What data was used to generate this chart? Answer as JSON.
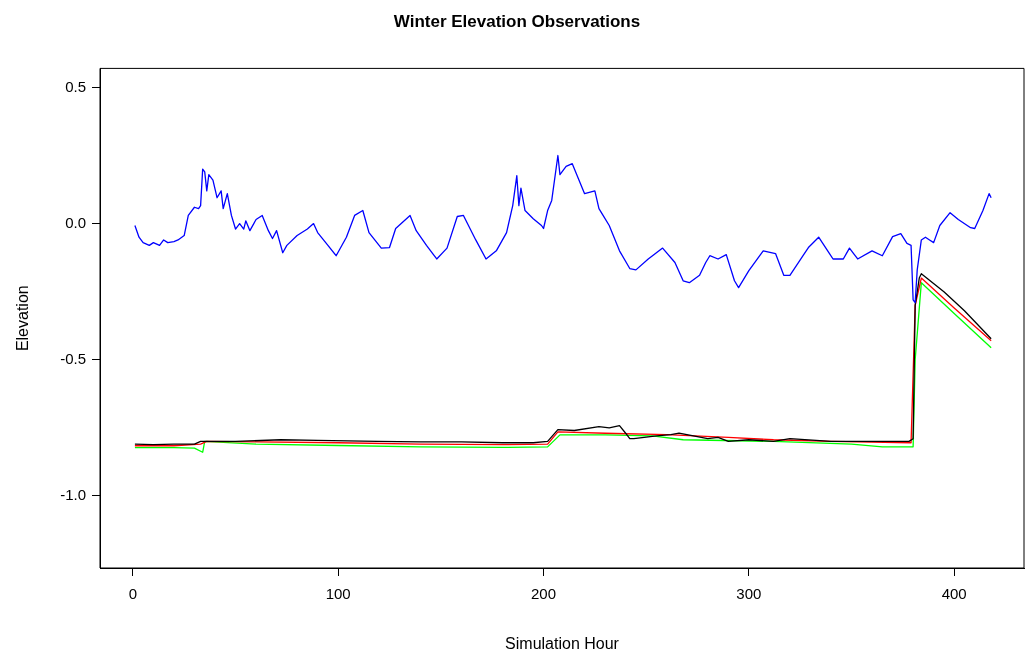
{
  "chart_data": {
    "type": "line",
    "title": "Winter Elevation Observations",
    "xlabel": "Simulation Hour",
    "ylabel": "Elevation",
    "xlim": [
      -16,
      434
    ],
    "xticks": [
      0,
      100,
      200,
      300,
      400
    ],
    "ylim": [
      -1.265,
      0.57
    ],
    "yticks": [
      {
        "value": -1,
        "label": "-1.0"
      },
      {
        "value": -0.5,
        "label": "-0.5"
      },
      {
        "value": 0,
        "label": "0.0"
      },
      {
        "value": 0.5,
        "label": "0.5"
      }
    ],
    "grid": false,
    "legend": false,
    "marker": "none",
    "line_style": "solid",
    "series": [
      {
        "color": "#0000ff",
        "x": [
          1,
          3,
          5,
          8,
          10,
          13,
          15,
          17,
          20,
          22,
          25,
          27,
          30,
          32,
          33,
          34,
          35,
          36,
          37,
          39,
          41,
          43,
          44,
          46,
          48,
          50,
          52,
          54,
          55,
          57,
          60,
          63,
          66,
          68,
          70,
          73,
          75,
          80,
          85,
          88,
          90,
          95,
          99,
          104,
          108,
          112,
          115,
          121,
          125,
          128,
          135,
          138,
          143,
          148,
          153,
          158,
          161,
          167,
          172,
          177,
          182,
          185,
          187,
          188,
          189,
          191,
          195,
          199,
          200,
          202,
          204,
          207,
          208,
          211,
          214,
          217,
          220,
          225,
          227,
          229,
          232,
          237,
          242,
          245,
          251,
          258,
          264,
          268,
          271,
          276,
          279,
          281,
          285,
          289,
          293,
          295,
          300,
          307,
          313,
          317,
          320,
          329,
          334,
          341,
          346,
          349,
          353,
          360,
          365,
          370,
          374,
          377,
          379,
          380,
          381,
          382,
          384,
          386,
          388,
          390,
          393,
          398,
          402,
          408,
          410,
          414,
          417,
          418
        ],
        "values": [
          -0.007,
          -0.05,
          -0.07,
          -0.08,
          -0.07,
          -0.08,
          -0.06,
          -0.07,
          -0.066,
          -0.06,
          -0.044,
          0.03,
          0.06,
          0.055,
          0.066,
          0.2,
          0.19,
          0.12,
          0.18,
          0.16,
          0.095,
          0.12,
          0.055,
          0.11,
          0.03,
          -0.02,
          0,
          -0.02,
          0.01,
          -0.026,
          0.015,
          0.03,
          -0.026,
          -0.055,
          -0.026,
          -0.107,
          -0.08,
          -0.044,
          -0.02,
          0,
          -0.033,
          -0.08,
          -0.118,
          -0.05,
          0.03,
          0.048,
          -0.033,
          -0.09,
          -0.088,
          -0.018,
          0.03,
          -0.026,
          -0.08,
          -0.13,
          -0.09,
          0.026,
          0.03,
          -0.06,
          -0.13,
          -0.1,
          -0.033,
          0.066,
          0.176,
          0.066,
          0.13,
          0.048,
          0.018,
          -0.007,
          -0.018,
          0.048,
          0.085,
          0.25,
          0.18,
          0.21,
          0.22,
          0.165,
          0.11,
          0.12,
          0.055,
          0.03,
          -0.007,
          -0.1,
          -0.165,
          -0.17,
          -0.13,
          -0.09,
          -0.143,
          -0.21,
          -0.217,
          -0.19,
          -0.143,
          -0.118,
          -0.13,
          -0.114,
          -0.21,
          -0.235,
          -0.173,
          -0.1,
          -0.11,
          -0.19,
          -0.19,
          -0.088,
          -0.05,
          -0.13,
          -0.13,
          -0.09,
          -0.13,
          -0.1,
          -0.118,
          -0.048,
          -0.037,
          -0.073,
          -0.08,
          -0.28,
          -0.29,
          -0.17,
          -0.06,
          -0.05,
          -0.06,
          -0.07,
          -0.007,
          0.04,
          0.015,
          -0.015,
          -0.018,
          0.048,
          0.11,
          0.095
        ]
      },
      {
        "color": "#000000",
        "x": [
          1,
          10,
          20,
          30,
          33,
          35,
          50,
          72,
          90,
          119,
          140,
          160,
          180,
          195,
          202,
          207,
          215,
          227,
          232,
          237,
          240,
          242,
          244,
          255,
          262,
          266,
          273,
          280,
          285,
          290,
          300,
          312,
          320,
          340,
          360,
          378,
          380,
          381,
          383,
          384,
          395,
          405,
          418
        ],
        "values": [
          -0.81,
          -0.812,
          -0.81,
          -0.81,
          -0.8,
          -0.8,
          -0.8,
          -0.794,
          -0.796,
          -0.8,
          -0.802,
          -0.802,
          -0.805,
          -0.805,
          -0.8,
          -0.757,
          -0.76,
          -0.746,
          -0.75,
          -0.742,
          -0.77,
          -0.79,
          -0.79,
          -0.78,
          -0.775,
          -0.77,
          -0.78,
          -0.79,
          -0.785,
          -0.8,
          -0.794,
          -0.8,
          -0.79,
          -0.8,
          -0.8,
          -0.8,
          -0.79,
          -0.3,
          -0.2,
          -0.184,
          -0.25,
          -0.32,
          -0.423
        ]
      },
      {
        "color": "#ff0000",
        "x": [
          1,
          20,
          33,
          36,
          60,
          100,
          140,
          180,
          202,
          207,
          230,
          260,
          290,
          312,
          340,
          379,
          381,
          384,
          400,
          418
        ],
        "values": [
          -0.816,
          -0.816,
          -0.81,
          -0.8,
          -0.802,
          -0.805,
          -0.81,
          -0.812,
          -0.81,
          -0.765,
          -0.77,
          -0.775,
          -0.785,
          -0.794,
          -0.8,
          -0.805,
          -0.3,
          -0.2,
          -0.31,
          -0.43
        ]
      },
      {
        "color": "#00ff00",
        "x": [
          1,
          20,
          30,
          34,
          35,
          60,
          100,
          140,
          180,
          202,
          208,
          230,
          253,
          268,
          312,
          350,
          365,
          380,
          381,
          384,
          400,
          418
        ],
        "values": [
          -0.823,
          -0.823,
          -0.825,
          -0.84,
          -0.8,
          -0.81,
          -0.815,
          -0.82,
          -0.822,
          -0.82,
          -0.776,
          -0.776,
          -0.78,
          -0.794,
          -0.8,
          -0.81,
          -0.82,
          -0.82,
          -0.5,
          -0.217,
          -0.33,
          -0.456
        ]
      }
    ]
  }
}
